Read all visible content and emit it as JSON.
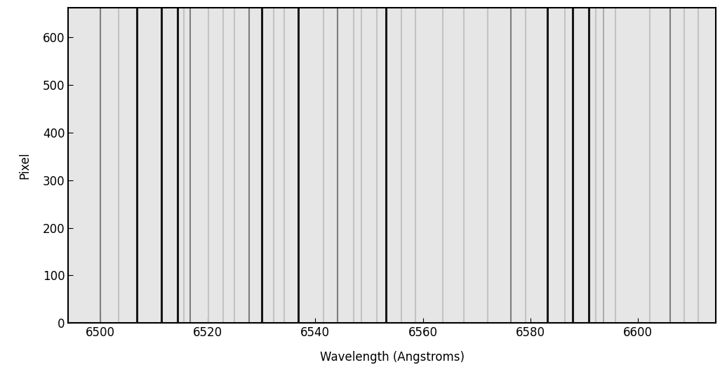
{
  "chart_data": {
    "type": "image",
    "x_label": "Wavelength (Angstroms)",
    "y_label": "Pixel",
    "x": [
      6500.1,
      6503.5,
      6506.8,
      6511.4,
      6514.4,
      6515.6,
      6516.8,
      6520.1,
      6522.9,
      6525.0,
      6527.7,
      6530.1,
      6532.3,
      6534.2,
      6536.8,
      6541.5,
      6544.1,
      6547.1,
      6548.6,
      6551.5,
      6553.1,
      6556.0,
      6558.6,
      6563.7,
      6567.6,
      6572.1,
      6576.3,
      6579.1,
      6583.1,
      6586.4,
      6587.8,
      6590.8,
      6592.2,
      6593.6,
      6595.8,
      6602.2,
      6605.9,
      6608.6,
      6611.2
    ],
    "values": [
      0.55,
      0.85,
      0.1,
      0.1,
      0.1,
      0.85,
      0.55,
      0.85,
      0.85,
      0.85,
      0.55,
      0.1,
      0.85,
      0.85,
      0.1,
      0.85,
      0.55,
      0.85,
      0.85,
      0.85,
      0.1,
      0.85,
      0.85,
      0.85,
      0.85,
      0.85,
      0.55,
      0.85,
      0.1,
      0.85,
      0.1,
      0.1,
      0.85,
      0.75,
      0.85,
      0.85,
      0.55,
      0.85,
      0.85
    ],
    "xlim": [
      6494.1,
      6614.5
    ],
    "ylim": [
      0,
      663
    ],
    "xticks": [
      6500,
      6520,
      6540,
      6560,
      6580,
      6600
    ],
    "yticks": [
      0,
      100,
      200,
      300,
      400,
      500,
      600
    ],
    "grid": false
  }
}
